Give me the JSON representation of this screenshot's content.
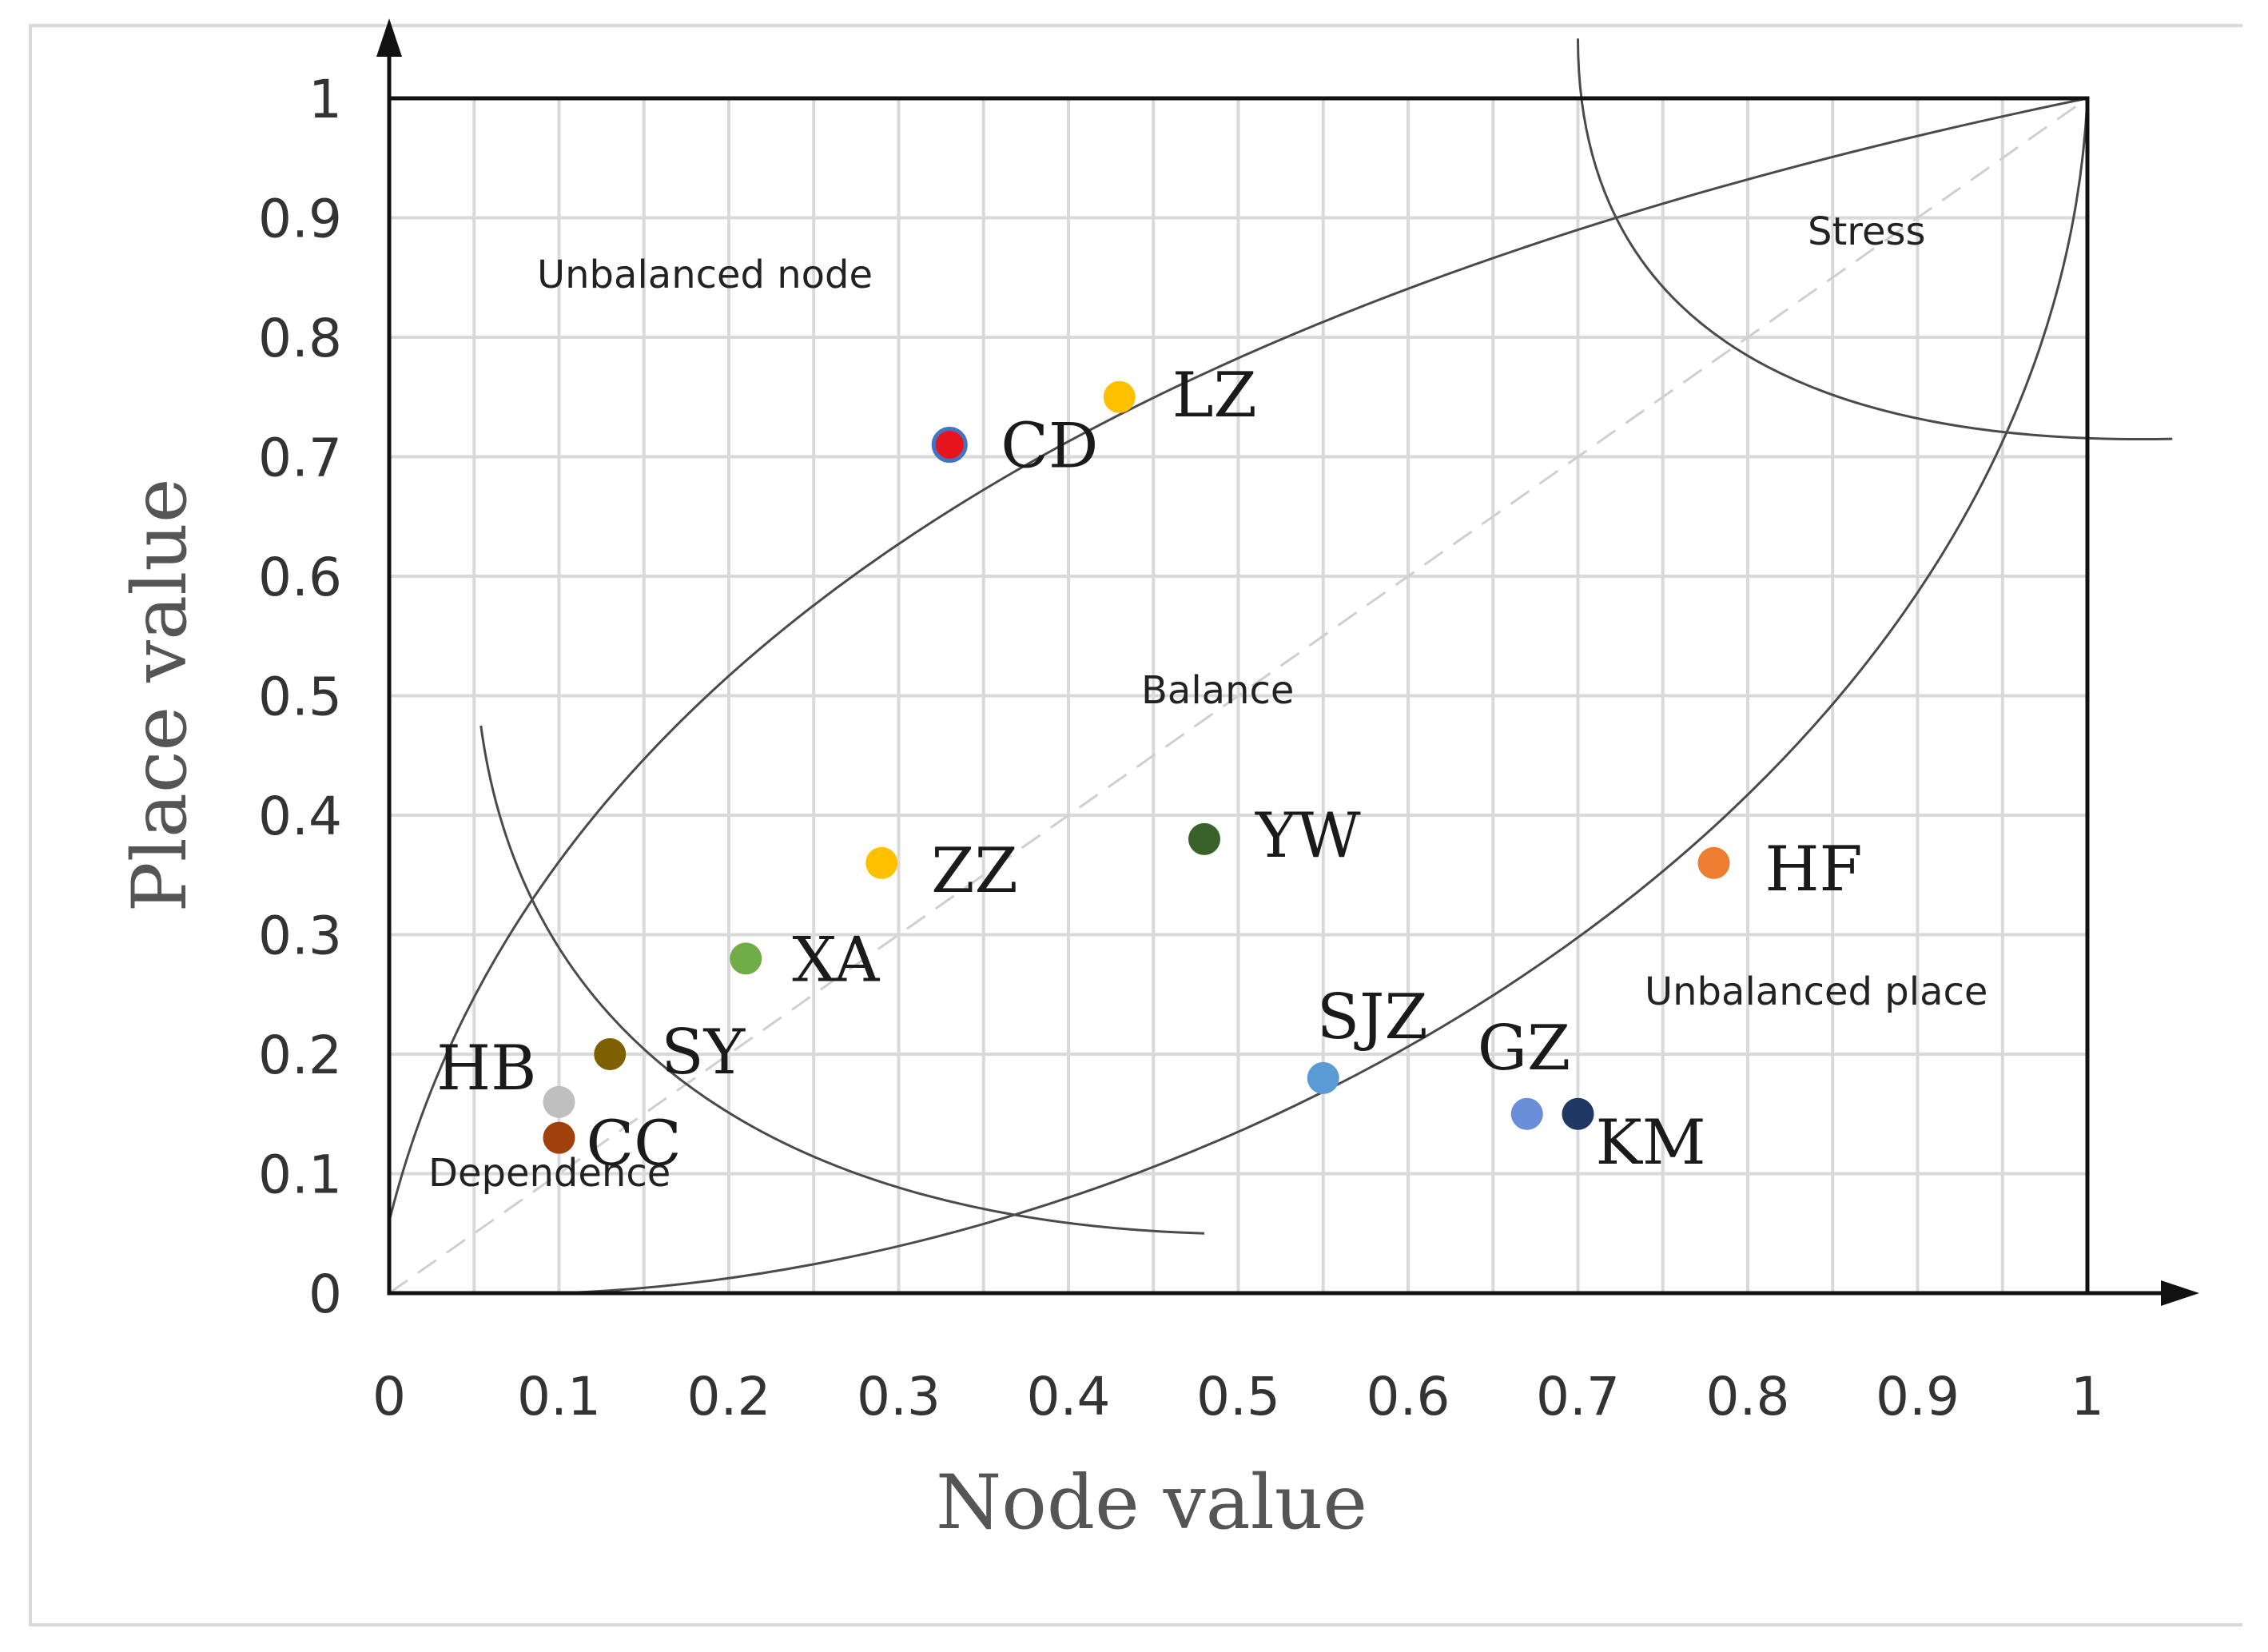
{
  "chart_data": {
    "type": "scatter",
    "title": "",
    "xlabel": "Node value",
    "ylabel": "Place value",
    "xlim": [
      0,
      1
    ],
    "ylim": [
      0,
      1
    ],
    "xticks": [
      "0",
      "0.1",
      "0.2",
      "0.3",
      "0.4",
      "0.5",
      "0.6",
      "0.7",
      "0.8",
      "0.9",
      "1"
    ],
    "yticks": [
      "0",
      "0.1",
      "0.2",
      "0.3",
      "0.4",
      "0.5",
      "0.6",
      "0.7",
      "0.8",
      "0.9",
      "1"
    ],
    "grid": true,
    "reference_line": "diagonal y = x (dashed)",
    "regions": [
      {
        "name": "unbalanced-node",
        "label": "Unbalanced node"
      },
      {
        "name": "stress",
        "label": "Stress"
      },
      {
        "name": "balance",
        "label": "Balance"
      },
      {
        "name": "unbalanced-place",
        "label": "Unbalanced place"
      },
      {
        "name": "dependence",
        "label": "Dependence"
      }
    ],
    "points": [
      {
        "label": "CD",
        "x": 0.33,
        "y": 0.71,
        "color": "#e8141b",
        "ring": "#4472c4"
      },
      {
        "label": "LZ",
        "x": 0.43,
        "y": 0.75,
        "color": "#ffc000"
      },
      {
        "label": "ZZ",
        "x": 0.29,
        "y": 0.36,
        "color": "#ffc000"
      },
      {
        "label": "YW",
        "x": 0.48,
        "y": 0.38,
        "color": "#38622a"
      },
      {
        "label": "HF",
        "x": 0.78,
        "y": 0.36,
        "color": "#ed7d31"
      },
      {
        "label": "XA",
        "x": 0.21,
        "y": 0.28,
        "color": "#70ad47"
      },
      {
        "label": "SY",
        "x": 0.13,
        "y": 0.2,
        "color": "#7f6000"
      },
      {
        "label": "HB",
        "x": 0.1,
        "y": 0.16,
        "color": "#bfbfbf"
      },
      {
        "label": "CC",
        "x": 0.1,
        "y": 0.13,
        "color": "#a0410b"
      },
      {
        "label": "SJZ",
        "x": 0.55,
        "y": 0.18,
        "color": "#5b9bd5"
      },
      {
        "label": "GZ",
        "x": 0.67,
        "y": 0.15,
        "color": "#6a8fd8"
      },
      {
        "label": "KM",
        "x": 0.7,
        "y": 0.15,
        "color": "#203864"
      }
    ]
  }
}
